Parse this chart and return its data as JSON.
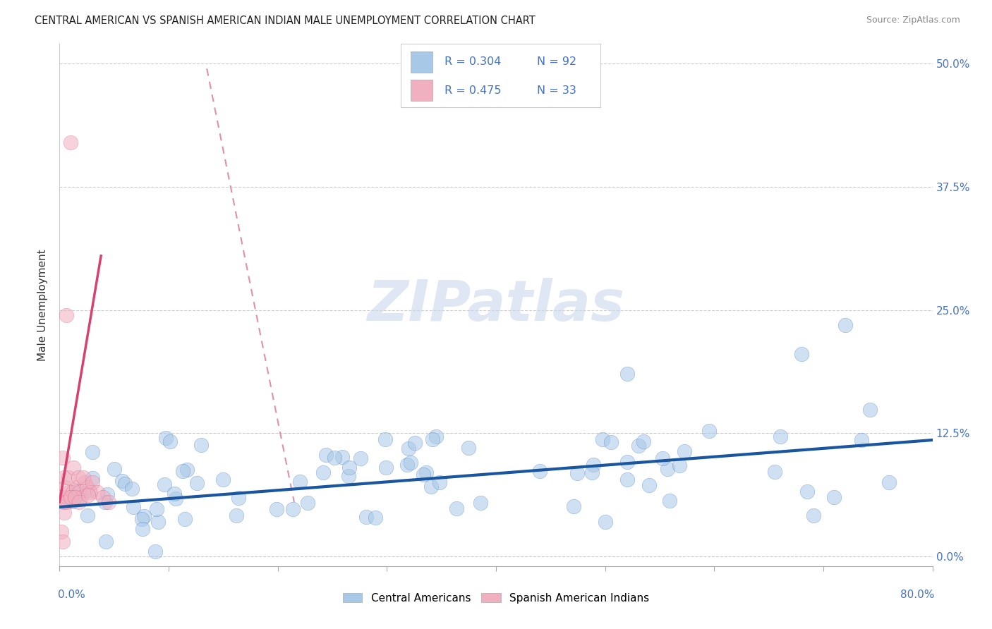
{
  "title": "CENTRAL AMERICAN VS SPANISH AMERICAN INDIAN MALE UNEMPLOYMENT CORRELATION CHART",
  "source": "Source: ZipAtlas.com",
  "ylabel": "Male Unemployment",
  "ytick_labels": [
    "0.0%",
    "12.5%",
    "25.0%",
    "37.5%",
    "50.0%"
  ],
  "ytick_values": [
    0.0,
    0.125,
    0.25,
    0.375,
    0.5
  ],
  "xlim": [
    0.0,
    0.8
  ],
  "ylim": [
    -0.01,
    0.52
  ],
  "legend_label1": "Central Americans",
  "legend_label2": "Spanish American Indians",
  "r1": 0.304,
  "n1": 92,
  "r2": 0.475,
  "n2": 33,
  "color_blue": "#a8c8e8",
  "color_blue_dark": "#2060b0",
  "color_blue_line": "#1a56a0",
  "color_pink": "#f0b0c0",
  "color_pink_line": "#d84070",
  "color_pink_dash": "#e090a8",
  "watermark_color": "#ccd8ee",
  "background_color": "#ffffff",
  "title_fontsize": 10.5,
  "source_fontsize": 9,
  "legend_text_color": "#4472c4",
  "axis_label_color": "#4472c4",
  "seed_blue": 42,
  "seed_pink": 77
}
